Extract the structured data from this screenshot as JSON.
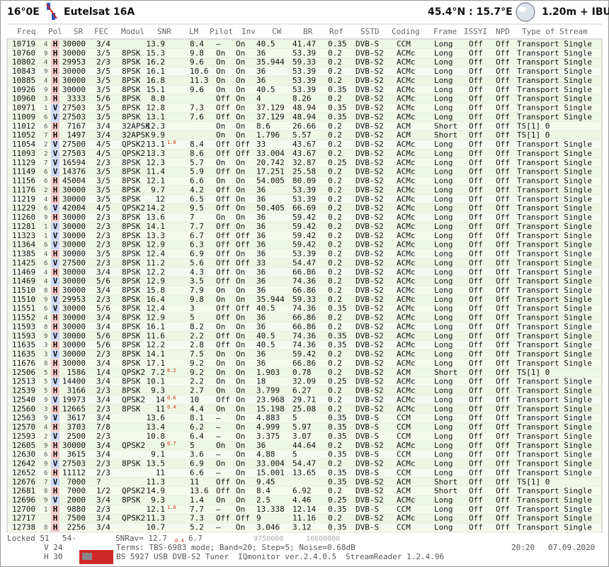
{
  "header": {
    "position": "16°0E",
    "satellite": "Eutelsat 16A",
    "location": "45.4°N : 15.7°E",
    "dish": "1.20m + IBU"
  },
  "table": {
    "columns": [
      "Freq",
      "Pol",
      "SR",
      "FEC",
      "Modul",
      "SNR",
      "LM",
      "Pilot",
      "Inv",
      "CW",
      "BR",
      "Rof",
      "SSTD",
      "Coding",
      "Frame",
      "ISSYI",
      "NPD",
      "Type of Stream"
    ],
    "rows": [
      [
        "10719",
        "4",
        "H",
        "30000",
        "3/4",
        null,
        "13.9",
        null,
        "8.4",
        "–",
        "On",
        "40.5",
        "41.47",
        "0.35",
        "DVB-S",
        "CCM",
        "Long",
        "Off",
        "Off",
        "Transport Single"
      ],
      [
        "10760",
        "9",
        "H",
        "30000",
        "3/5",
        "8PSK",
        "15.3",
        null,
        "9.8",
        "On",
        "On",
        "36",
        "53.39",
        "0.2",
        "DVB-S2",
        "ACMc",
        "Long",
        "Off",
        "Off",
        "Transport Single"
      ],
      [
        "10802",
        "4",
        "H",
        "29953",
        "2/3",
        "8PSK",
        "16.2",
        null,
        "9.6",
        "On",
        "On",
        "35.944",
        "59.33",
        "0.2",
        "DVB-S2",
        "ACMc",
        "Long",
        "Off",
        "Off",
        "Transport Single"
      ],
      [
        "10843",
        "9",
        "H",
        "30000",
        "3/5",
        "8PSK",
        "16.1",
        null,
        "10.6",
        "On",
        "On",
        "36",
        "53.39",
        "0.2",
        "DVB-S2",
        "ACMc",
        "Long",
        "Off",
        "Off",
        "Transport Single"
      ],
      [
        "10885",
        "4",
        "H",
        "30000",
        "3/5",
        "8PSK",
        "16.8",
        null,
        "11.3",
        "On",
        "On",
        "36",
        "53.39",
        "0.2",
        "DVB-S2",
        "ACMc",
        "Long",
        "Off",
        "Off",
        "Transport Single"
      ],
      [
        "10926",
        "9",
        "H",
        "30000",
        "3/5",
        "8PSK",
        "15.1",
        null,
        "9.6",
        "On",
        "On",
        "40.5",
        "53.39",
        "0.35",
        "DVB-S2",
        "ACMc",
        "Long",
        "Off",
        "Off",
        "Transport Single"
      ],
      [
        "10960",
        "3",
        "H",
        "3333",
        "5/6",
        "8PSK",
        "8.8",
        null,
        null,
        "Off",
        "On",
        "4",
        "8.26",
        "0.2",
        "DVB-S2",
        "ACMc",
        "Long",
        "Off",
        "Off",
        "Transport Single"
      ],
      [
        "10971",
        "1",
        "V",
        "27503",
        "3/5",
        "8PSK",
        "12.8",
        null,
        "7.3",
        "Off",
        "On",
        "37.129",
        "48.94",
        "0.35",
        "DVB-S2",
        "ACMc",
        "Long",
        "Off",
        "Off",
        "Transport Single"
      ],
      [
        "11009",
        "6",
        "V",
        "27503",
        "3/5",
        "8PSK",
        "13.1",
        null,
        "7.6",
        "Off",
        "On",
        "37.129",
        "48.94",
        "0.35",
        "DVB-S2",
        "ACMc",
        "Long",
        "Off",
        "Off",
        "Transport Single"
      ],
      [
        "11012",
        "6",
        "H",
        "7167",
        "3/4",
        "32APSK",
        "12.3",
        null,
        null,
        "On",
        "On",
        "8.6",
        "26.66",
        "0.2",
        "DVB-S2",
        "ACM",
        "Short",
        "Off",
        "Off",
        "TS[1] 0"
      ],
      [
        "11052",
        "7",
        "H",
        "1497",
        "3/4",
        "32APSK",
        "9.9",
        null,
        null,
        "On",
        "On",
        "1.796",
        "5.57",
        "0.2",
        "DVB-S2",
        "ACM",
        "Short",
        "Off",
        "Off",
        "TS[1] 0"
      ],
      [
        "11054",
        "2",
        "V",
        "27500",
        "4/5",
        "QPSK2",
        "13.1",
        "1.6",
        "8.4",
        "Off",
        "Off",
        "33",
        "43.67",
        "0.2",
        "DVB-S2",
        "ACMc",
        "Long",
        "Off",
        "Off",
        "Transport Single"
      ],
      [
        "11093",
        "2",
        "V",
        "27503",
        "4/5",
        "QPSK2",
        "13.3",
        null,
        "8.6",
        "Off",
        "Off",
        "33.004",
        "43.67",
        "0.2",
        "DVB-S2",
        "ACMc",
        "Long",
        "Off",
        "Off",
        "Transport Single"
      ],
      [
        "11129",
        "7",
        "V",
        "16594",
        "2/3",
        "8PSK",
        "12.3",
        null,
        "5.7",
        "On",
        "On",
        "20.742",
        "32.87",
        "0.25",
        "DVB-S2",
        "ACMc",
        "Long",
        "Off",
        "Off",
        "Transport Single"
      ],
      [
        "11149",
        "6",
        "V",
        "14376",
        "3/5",
        "8PSK",
        "11.4",
        null,
        "5.9",
        "Off",
        "On",
        "17.251",
        "25.58",
        "0.2",
        "DVB-S2",
        "ACMc",
        "Long",
        "Off",
        "Off",
        "Transport Single"
      ],
      [
        "11156",
        "6",
        "H",
        "45004",
        "3/5",
        "8PSK",
        "12.1",
        null,
        "6.6",
        "On",
        "On",
        "54.005",
        "80.09",
        "0.2",
        "DVB-S2",
        "ACMc",
        "Long",
        "Off",
        "Off",
        "Transport Single"
      ],
      [
        "11176",
        "2",
        "H",
        "30000",
        "3/5",
        "8PSK",
        "9.7",
        null,
        "4.2",
        "Off",
        "On",
        "36",
        "53.39",
        "0.2",
        "DVB-S2",
        "ACMc",
        "Long",
        "Off",
        "Off",
        "Transport Single"
      ],
      [
        "11219",
        "4",
        "H",
        "30000",
        "3/5",
        "8PSK",
        "12",
        null,
        "6.5",
        "Off",
        "On",
        "36",
        "53.39",
        "0.2",
        "DVB-S2",
        "ACMc",
        "Long",
        "Off",
        "Off",
        "Transport Single"
      ],
      [
        "11229",
        "6",
        "V",
        "42004",
        "4/5",
        "QPSK2",
        "14.2",
        null,
        "9.5",
        "Off",
        "On",
        "50.405",
        "66.69",
        "0.2",
        "DVB-S2",
        "ACMc",
        "Long",
        "Off",
        "Off",
        "Transport Single"
      ],
      [
        "11260",
        "9",
        "H",
        "30000",
        "2/3",
        "8PSK",
        "13.6",
        null,
        "7",
        "On",
        "On",
        "36",
        "59.42",
        "0.2",
        "DVB-S2",
        "ACMc",
        "Long",
        "Off",
        "Off",
        "Transport Single"
      ],
      [
        "11281",
        "1",
        "V",
        "30000",
        "2/3",
        "8PSK",
        "14.1",
        null,
        "7.7",
        "Off",
        "On",
        "36",
        "59.42",
        "0.2",
        "DVB-S2",
        "ACMc",
        "Long",
        "Off",
        "Off",
        "Transport Single"
      ],
      [
        "11323",
        "1",
        "V",
        "30000",
        "2/3",
        "8PSK",
        "13.3",
        null,
        "6.7",
        "Off",
        "Off",
        "36",
        "59.42",
        "0.2",
        "DVB-S2",
        "ACMc",
        "Long",
        "Off",
        "Off",
        "Transport Single"
      ],
      [
        "11364",
        "6",
        "V",
        "30000",
        "2/3",
        "8PSK",
        "12.9",
        null,
        "6.3",
        "Off",
        "Off",
        "36",
        "59.42",
        "0.2",
        "DVB-S2",
        "ACMc",
        "Long",
        "Off",
        "Off",
        "Transport Single"
      ],
      [
        "11385",
        "4",
        "H",
        "30000",
        "3/5",
        "8PSK",
        "12.4",
        null,
        "6.9",
        "Off",
        "On",
        "36",
        "53.39",
        "0.2",
        "DVB-S2",
        "ACMc",
        "Long",
        "Off",
        "Off",
        "Transport Single"
      ],
      [
        "11425",
        "6",
        "V",
        "27500",
        "2/3",
        "8PSK",
        "11.2",
        null,
        "5.6",
        "Off",
        "Off",
        "33",
        "54.47",
        "0.2",
        "DVB-S2",
        "ACMc",
        "Long",
        "Off",
        "Off",
        "Transport Single"
      ],
      [
        "11469",
        "4",
        "H",
        "30000",
        "3/4",
        "8PSK",
        "12.2",
        null,
        "4.3",
        "Off",
        "On",
        "36",
        "66.86",
        "0.2",
        "DVB-S2",
        "ACMc",
        "Long",
        "Off",
        "Off",
        "Transport Single"
      ],
      [
        "11469",
        "4",
        "V",
        "30000",
        "5/6",
        "8PSK",
        "12.9",
        null,
        "3.5",
        "Off",
        "On",
        "36",
        "74.36",
        "0.2",
        "DVB-S2",
        "ACMc",
        "Long",
        "Off",
        "Off",
        "Transport Single"
      ],
      [
        "11510",
        "8",
        "H",
        "30000",
        "3/4",
        "8PSK",
        "15.8",
        null,
        "7.9",
        "On",
        "On",
        "36",
        "66.86",
        "0.2",
        "DVB-S2",
        "ACMc",
        "Long",
        "Off",
        "Off",
        "Transport Single"
      ],
      [
        "11510",
        "9",
        "V",
        "29953",
        "2/3",
        "8PSK",
        "16.4",
        null,
        "9.8",
        "On",
        "On",
        "35.944",
        "59.33",
        "0.2",
        "DVB-S2",
        "ACMc",
        "Long",
        "Off",
        "Off",
        "Transport Single"
      ],
      [
        "11551",
        "6",
        "V",
        "30000",
        "5/6",
        "8PSK",
        "12.4",
        null,
        "3",
        "Off",
        "Off",
        "40.5",
        "74.36",
        "0.35",
        "DVB-S2",
        "ACMc",
        "Long",
        "Off",
        "Off",
        "Transport Single"
      ],
      [
        "11552",
        "4",
        "H",
        "30000",
        "3/4",
        "8PSK",
        "12.9",
        null,
        "5",
        "Off",
        "On",
        "36",
        "66.86",
        "0.2",
        "DVB-S2",
        "ACMc",
        "Long",
        "Off",
        "Off",
        "Transport Single"
      ],
      [
        "11593",
        "8",
        "H",
        "30000",
        "3/4",
        "8PSK",
        "16.1",
        null,
        "8.2",
        "On",
        "On",
        "36",
        "66.86",
        "0.2",
        "DVB-S2",
        "ACMc",
        "Long",
        "Off",
        "Off",
        "Transport Single"
      ],
      [
        "11593",
        "9",
        "V",
        "30000",
        "5/6",
        "8PSK",
        "11.6",
        null,
        "2.2",
        "Off",
        "On",
        "40.5",
        "74.36",
        "0.35",
        "DVB-S2",
        "ACMc",
        "Long",
        "Off",
        "Off",
        "Transport Single"
      ],
      [
        "11635",
        "3",
        "H",
        "30000",
        "5/6",
        "8PSK",
        "12.2",
        null,
        "2.8",
        "Off",
        "On",
        "40.5",
        "74.36",
        "0.35",
        "DVB-S2",
        "ACMc",
        "Long",
        "Off",
        "Off",
        "Transport Single"
      ],
      [
        "11635",
        "3",
        "V",
        "30000",
        "2/3",
        "8PSK",
        "14.1",
        null,
        "7.5",
        "On",
        "On",
        "36",
        "59.42",
        "0.2",
        "DVB-S2",
        "ACMc",
        "Long",
        "Off",
        "Off",
        "Transport Single"
      ],
      [
        "11676",
        "8",
        "H",
        "30000",
        "3/4",
        "8PSK",
        "17.1",
        null,
        "9.2",
        "On",
        "On",
        "36",
        "66.86",
        "0.2",
        "DVB-S2",
        "ACMc",
        "Long",
        "Off",
        "Off",
        "Transport Single"
      ],
      [
        "12506",
        "5",
        "H",
        "1586",
        "1/4",
        "QPSK2",
        "7.2",
        "6.2",
        "9.2",
        "On",
        "On",
        "1.903",
        "0.78",
        "0.2",
        "DVB-S2",
        "ACM",
        "Short",
        "Off",
        "Off",
        "TS[1] 0"
      ],
      [
        "12513",
        "5",
        "V",
        "14400",
        "3/4",
        "8PSK",
        "10.1",
        null,
        "2.2",
        "On",
        "On",
        "18",
        "32.09",
        "0.25",
        "DVB-S2",
        "ACMc",
        "Long",
        "Off",
        "Off",
        "Transport Single"
      ],
      [
        "12539",
        "5",
        "H",
        "3166",
        "2/3",
        "8PSK",
        "9.3",
        null,
        "2.7",
        "On",
        "On",
        "3.799",
        "6.27",
        "0.2",
        "DVB-S2",
        "ACMc",
        "Long",
        "Off",
        "Off",
        "Transport Single"
      ],
      [
        "12540",
        "9",
        "V",
        "19973",
        "3/4",
        "QPSK2",
        "14",
        "0.6",
        "10",
        "Off",
        "On",
        "23.968",
        "29.71",
        "0.2",
        "DVB-S2",
        "ACMc",
        "Long",
        "Off",
        "Off",
        "Transport Single"
      ],
      [
        "12560",
        "3",
        "H",
        "12665",
        "2/3",
        "8PSK",
        "11",
        "0.4",
        "4.4",
        "On",
        "On",
        "15.198",
        "25.08",
        "0.2",
        "DVB-S2",
        "ACMc",
        "Long",
        "Off",
        "Off",
        "Transport Single"
      ],
      [
        "12563",
        "9",
        "V",
        "3617",
        "3/4",
        null,
        "13.6",
        null,
        "8.1",
        "–",
        "On",
        "4.883",
        "5",
        "0.35",
        "DVB-S",
        "CCM",
        "Long",
        "Off",
        "Off",
        "Transport Single"
      ],
      [
        "12570",
        "4",
        "H",
        "3703",
        "7/8",
        null,
        "13.4",
        null,
        "6.2",
        "–",
        "On",
        "4.999",
        "5.97",
        "0.35",
        "DVB-S",
        "CCM",
        "Long",
        "Off",
        "Off",
        "Transport Single"
      ],
      [
        "12593",
        "2",
        "V",
        "2500",
        "2/3",
        null,
        "10.8",
        null,
        "6.4",
        "–",
        "On",
        "3.375",
        "3.07",
        "0.35",
        "DVB-S",
        "CCM",
        "Long",
        "Off",
        "Off",
        "Transport Single"
      ],
      [
        "12605",
        "9",
        "H",
        "30000",
        "3/4",
        "QPSK2",
        "9",
        "0.7",
        "5",
        "On",
        "On",
        "36",
        "44.64",
        "0.2",
        "DVB-S2",
        "ACMc",
        "Long",
        "Off",
        "Off",
        "Transport Single"
      ],
      [
        "12630",
        "6",
        "H",
        "3615",
        "3/4",
        null,
        "9.1",
        null,
        "3.6",
        "–",
        "On",
        "4.88",
        "5",
        "0.35",
        "DVB-S",
        "CCM",
        "Long",
        "Off",
        "Off",
        "Transport Single"
      ],
      [
        "12642",
        "9",
        "V",
        "27503",
        "2/3",
        "8PSK",
        "13.5",
        null,
        "6.9",
        "On",
        "On",
        "33.004",
        "54.47",
        "0.2",
        "DVB-S2",
        "ACMc",
        "Long",
        "Off",
        "Off",
        "Transport Single"
      ],
      [
        "12652",
        "6",
        "H",
        "11112",
        "2/3",
        null,
        "11",
        null,
        "6.6",
        "–",
        "On",
        "15.001",
        "13.65",
        "0.35",
        "DVB-S",
        "CCM",
        "Long",
        "Off",
        "Off",
        "Transport Single"
      ],
      [
        "12676",
        "7",
        "V",
        "7000",
        "?",
        null,
        "11.3",
        null,
        "11",
        "Off",
        "On",
        "9.45",
        null,
        "0.35",
        "DVB-S2",
        "ACM",
        "Short",
        "Off",
        "Off",
        "TS[1] 0"
      ],
      [
        "12681",
        "8",
        "H",
        "7000",
        "1/2",
        "QPSK2",
        "14.9",
        null,
        "13.6",
        "Off",
        "On",
        "8.4",
        "6.92",
        "0.2",
        "DVB-S2",
        "ACM",
        "Short",
        "Off",
        "Off",
        "Transport Single"
      ],
      [
        "12696",
        "9",
        "V",
        "2000",
        "3/4",
        "8PSK",
        "9.3",
        null,
        "1.4",
        "On",
        "On",
        "2.5",
        "4.46",
        "0.25",
        "DVB-S2",
        "ACMc",
        "Long",
        "Off",
        "Off",
        "Transport Single"
      ],
      [
        "12700",
        "1",
        "H",
        "9880",
        "2/3",
        null,
        "12.1",
        "1.6",
        "7.7",
        "–",
        "On",
        "13.338",
        "12.14",
        "0.35",
        "DVB-S",
        "CCM",
        "Long",
        "Off",
        "Off",
        "Transport Single"
      ],
      [
        "12717",
        null,
        "H",
        "7500",
        "3/4",
        "QPSK2",
        "11.3",
        null,
        "7.3",
        "Off",
        "Off",
        "9",
        "11.16",
        "0.2",
        "DVB-S2",
        "ACMc",
        "Long",
        "Off",
        "Off",
        "Transport Single"
      ],
      [
        "12738",
        "8",
        "H",
        "2256",
        "3/4",
        null,
        "10.7",
        null,
        "5.2",
        "–",
        "On",
        "3.046",
        "3.12",
        "0.35",
        "DVB-S",
        "CCM",
        "Long",
        "Off",
        "Off",
        "Transport Single"
      ]
    ]
  },
  "footer": {
    "locked": "Locked 51",
    "count": "54-",
    "snr": "SNRav= 12.7",
    "snr_small": "0.4",
    "snr2": "6.7",
    "lo1": "9750000",
    "lo2": "10600000",
    "v": "V 24",
    "h": "H 30",
    "terms": "Terms: TBS-6983 mode; Band=20; Step=5; Noise=0.68dB",
    "time": "20:20",
    "date": "07.09.2020",
    "tuner": "BS 5927 USB DVB-S2 Tuner",
    "iq": "IQmonitor ver.2.4.0.5",
    "reader": "StreamReader 1.2.4.96"
  }
}
